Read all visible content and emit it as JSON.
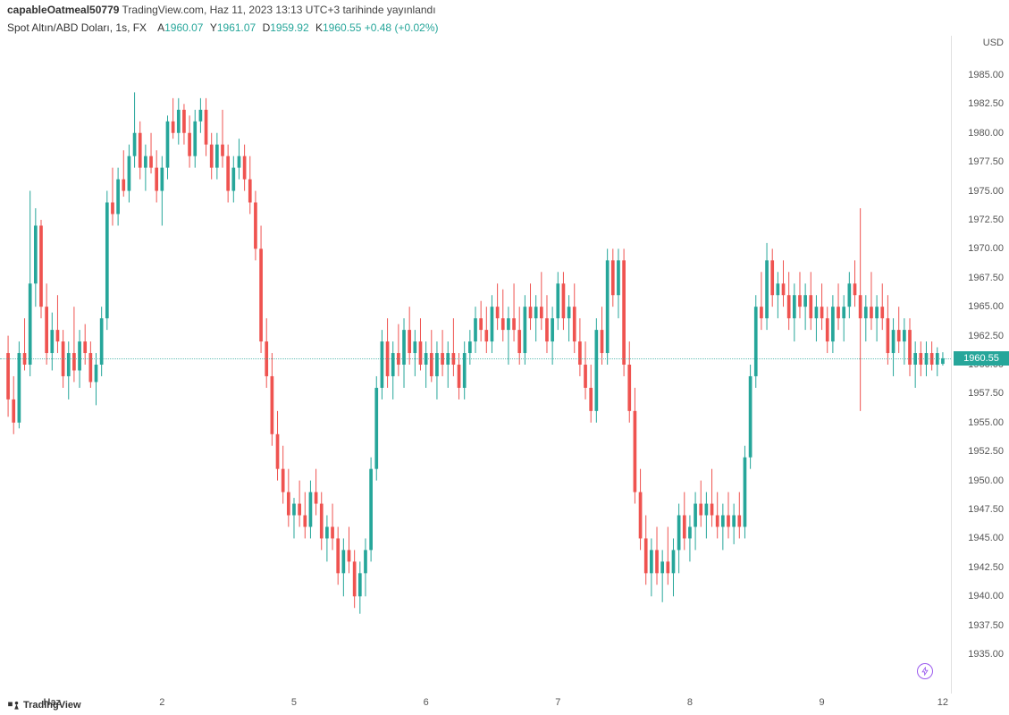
{
  "header": {
    "user": "capableOatmeal50779",
    "site": "TradingView.com",
    "published": ", Haz 11, 2023 13:13 UTC+3 tarihinde yayınlandı"
  },
  "subheader": {
    "symbol": "Spot Altın/ABD Doları, 1s, FX",
    "a_label": "A",
    "a_value": "1960.07",
    "y_label": "Y",
    "y_value": "1961.07",
    "d_label": "D",
    "d_value": "1959.92",
    "k_label": "K",
    "k_value": "1960.55",
    "change": "+0.48",
    "change_pct": "(+0.02%)"
  },
  "yaxis_title": "USD",
  "footer": "TradingView",
  "chart": {
    "type": "candlestick",
    "ylim": [
      1933,
      1987
    ],
    "ytick_step": 2.5,
    "yticks": [
      1935.0,
      1937.5,
      1940.0,
      1942.5,
      1945.0,
      1947.5,
      1950.0,
      1952.5,
      1955.0,
      1957.5,
      1960.0,
      1962.5,
      1965.0,
      1967.5,
      1970.0,
      1972.5,
      1975.0,
      1977.5,
      1980.0,
      1982.5,
      1985.0
    ],
    "xlabels": [
      {
        "t": 8,
        "label": "Haz"
      },
      {
        "t": 28,
        "label": "2"
      },
      {
        "t": 52,
        "label": "5"
      },
      {
        "t": 76,
        "label": "6"
      },
      {
        "t": 100,
        "label": "7"
      },
      {
        "t": 124,
        "label": "8"
      },
      {
        "t": 148,
        "label": "9"
      },
      {
        "t": 170,
        "label": "12"
      }
    ],
    "last_price": 1960.55,
    "up_color": "#26a69a",
    "down_color": "#ef5350",
    "background_color": "#ffffff",
    "grid_color": "#f0f0f0",
    "candle_width": 0.6,
    "candles": [
      {
        "o": 1961.0,
        "h": 1962.5,
        "l": 1955.5,
        "c": 1957.0
      },
      {
        "o": 1957.0,
        "h": 1959.0,
        "l": 1954.0,
        "c": 1955.0
      },
      {
        "o": 1955.0,
        "h": 1962.0,
        "l": 1954.5,
        "c": 1961.0
      },
      {
        "o": 1961.0,
        "h": 1964.0,
        "l": 1959.5,
        "c": 1960.0
      },
      {
        "o": 1960.0,
        "h": 1975.0,
        "l": 1959.0,
        "c": 1967.0
      },
      {
        "o": 1967.0,
        "h": 1973.5,
        "l": 1965.0,
        "c": 1972.0
      },
      {
        "o": 1972.0,
        "h": 1972.5,
        "l": 1964.0,
        "c": 1965.0
      },
      {
        "o": 1965.0,
        "h": 1967.0,
        "l": 1960.0,
        "c": 1961.0
      },
      {
        "o": 1961.0,
        "h": 1964.5,
        "l": 1959.5,
        "c": 1963.0
      },
      {
        "o": 1963.0,
        "h": 1966.0,
        "l": 1961.0,
        "c": 1962.0
      },
      {
        "o": 1962.0,
        "h": 1963.0,
        "l": 1958.0,
        "c": 1959.0
      },
      {
        "o": 1959.0,
        "h": 1962.0,
        "l": 1957.0,
        "c": 1961.0
      },
      {
        "o": 1961.0,
        "h": 1965.0,
        "l": 1958.5,
        "c": 1959.5
      },
      {
        "o": 1959.5,
        "h": 1963.0,
        "l": 1958.0,
        "c": 1962.0
      },
      {
        "o": 1962.0,
        "h": 1963.5,
        "l": 1960.0,
        "c": 1961.0
      },
      {
        "o": 1961.0,
        "h": 1962.0,
        "l": 1958.0,
        "c": 1958.5
      },
      {
        "o": 1958.5,
        "h": 1961.0,
        "l": 1956.5,
        "c": 1960.0
      },
      {
        "o": 1960.0,
        "h": 1965.0,
        "l": 1959.0,
        "c": 1964.0
      },
      {
        "o": 1964.0,
        "h": 1975.0,
        "l": 1963.0,
        "c": 1974.0
      },
      {
        "o": 1974.0,
        "h": 1977.0,
        "l": 1972.0,
        "c": 1973.0
      },
      {
        "o": 1973.0,
        "h": 1977.0,
        "l": 1972.0,
        "c": 1976.0
      },
      {
        "o": 1976.0,
        "h": 1978.5,
        "l": 1974.5,
        "c": 1975.0
      },
      {
        "o": 1975.0,
        "h": 1979.0,
        "l": 1974.0,
        "c": 1978.0
      },
      {
        "o": 1978.0,
        "h": 1983.5,
        "l": 1977.0,
        "c": 1980.0
      },
      {
        "o": 1980.0,
        "h": 1981.0,
        "l": 1976.0,
        "c": 1977.0
      },
      {
        "o": 1977.0,
        "h": 1979.0,
        "l": 1975.0,
        "c": 1978.0
      },
      {
        "o": 1978.0,
        "h": 1980.0,
        "l": 1976.5,
        "c": 1977.0
      },
      {
        "o": 1977.0,
        "h": 1978.5,
        "l": 1974.0,
        "c": 1975.0
      },
      {
        "o": 1975.0,
        "h": 1978.0,
        "l": 1972.0,
        "c": 1977.0
      },
      {
        "o": 1977.0,
        "h": 1981.5,
        "l": 1976.0,
        "c": 1981.0
      },
      {
        "o": 1981.0,
        "h": 1983.0,
        "l": 1979.5,
        "c": 1980.0
      },
      {
        "o": 1980.0,
        "h": 1983.0,
        "l": 1979.0,
        "c": 1982.0
      },
      {
        "o": 1982.0,
        "h": 1982.5,
        "l": 1979.0,
        "c": 1980.0
      },
      {
        "o": 1980.0,
        "h": 1981.5,
        "l": 1977.0,
        "c": 1978.0
      },
      {
        "o": 1978.0,
        "h": 1982.0,
        "l": 1977.0,
        "c": 1981.0
      },
      {
        "o": 1981.0,
        "h": 1983.0,
        "l": 1980.0,
        "c": 1982.0
      },
      {
        "o": 1982.0,
        "h": 1983.0,
        "l": 1978.0,
        "c": 1979.0
      },
      {
        "o": 1979.0,
        "h": 1980.0,
        "l": 1976.0,
        "c": 1977.0
      },
      {
        "o": 1977.0,
        "h": 1980.0,
        "l": 1976.0,
        "c": 1979.0
      },
      {
        "o": 1979.0,
        "h": 1982.0,
        "l": 1977.0,
        "c": 1978.0
      },
      {
        "o": 1978.0,
        "h": 1979.0,
        "l": 1974.0,
        "c": 1975.0
      },
      {
        "o": 1975.0,
        "h": 1978.0,
        "l": 1974.0,
        "c": 1977.0
      },
      {
        "o": 1977.0,
        "h": 1979.5,
        "l": 1976.0,
        "c": 1978.0
      },
      {
        "o": 1978.0,
        "h": 1979.0,
        "l": 1975.0,
        "c": 1976.0
      },
      {
        "o": 1976.0,
        "h": 1978.0,
        "l": 1973.0,
        "c": 1974.0
      },
      {
        "o": 1974.0,
        "h": 1975.0,
        "l": 1969.0,
        "c": 1970.0
      },
      {
        "o": 1970.0,
        "h": 1972.0,
        "l": 1961.0,
        "c": 1962.0
      },
      {
        "o": 1962.0,
        "h": 1964.0,
        "l": 1958.0,
        "c": 1959.0
      },
      {
        "o": 1959.0,
        "h": 1961.0,
        "l": 1953.0,
        "c": 1954.0
      },
      {
        "o": 1954.0,
        "h": 1956.0,
        "l": 1950.0,
        "c": 1951.0
      },
      {
        "o": 1951.0,
        "h": 1953.0,
        "l": 1948.0,
        "c": 1949.0
      },
      {
        "o": 1949.0,
        "h": 1951.0,
        "l": 1946.0,
        "c": 1947.0
      },
      {
        "o": 1947.0,
        "h": 1948.5,
        "l": 1945.0,
        "c": 1948.0
      },
      {
        "o": 1948.0,
        "h": 1950.0,
        "l": 1946.0,
        "c": 1947.0
      },
      {
        "o": 1947.0,
        "h": 1949.0,
        "l": 1945.0,
        "c": 1946.0
      },
      {
        "o": 1946.0,
        "h": 1950.0,
        "l": 1945.0,
        "c": 1949.0
      },
      {
        "o": 1949.0,
        "h": 1951.0,
        "l": 1947.0,
        "c": 1948.0
      },
      {
        "o": 1948.0,
        "h": 1949.0,
        "l": 1944.0,
        "c": 1945.0
      },
      {
        "o": 1945.0,
        "h": 1947.0,
        "l": 1943.0,
        "c": 1946.0
      },
      {
        "o": 1946.0,
        "h": 1948.0,
        "l": 1944.0,
        "c": 1945.0
      },
      {
        "o": 1945.0,
        "h": 1946.0,
        "l": 1941.0,
        "c": 1942.0
      },
      {
        "o": 1942.0,
        "h": 1945.0,
        "l": 1940.0,
        "c": 1944.0
      },
      {
        "o": 1944.0,
        "h": 1946.0,
        "l": 1942.0,
        "c": 1943.0
      },
      {
        "o": 1943.0,
        "h": 1944.0,
        "l": 1939.0,
        "c": 1940.0
      },
      {
        "o": 1940.0,
        "h": 1943.0,
        "l": 1938.5,
        "c": 1942.0
      },
      {
        "o": 1942.0,
        "h": 1945.0,
        "l": 1940.0,
        "c": 1944.0
      },
      {
        "o": 1944.0,
        "h": 1952.0,
        "l": 1943.0,
        "c": 1951.0
      },
      {
        "o": 1951.0,
        "h": 1959.0,
        "l": 1950.0,
        "c": 1958.0
      },
      {
        "o": 1958.0,
        "h": 1963.0,
        "l": 1957.0,
        "c": 1962.0
      },
      {
        "o": 1962.0,
        "h": 1964.0,
        "l": 1958.0,
        "c": 1959.0
      },
      {
        "o": 1959.0,
        "h": 1962.0,
        "l": 1957.0,
        "c": 1961.0
      },
      {
        "o": 1961.0,
        "h": 1963.5,
        "l": 1959.0,
        "c": 1960.0
      },
      {
        "o": 1960.0,
        "h": 1964.0,
        "l": 1958.0,
        "c": 1963.0
      },
      {
        "o": 1963.0,
        "h": 1965.0,
        "l": 1960.0,
        "c": 1961.0
      },
      {
        "o": 1961.0,
        "h": 1963.0,
        "l": 1959.0,
        "c": 1962.0
      },
      {
        "o": 1962.0,
        "h": 1964.0,
        "l": 1959.5,
        "c": 1960.0
      },
      {
        "o": 1960.0,
        "h": 1962.0,
        "l": 1958.0,
        "c": 1961.0
      },
      {
        "o": 1961.0,
        "h": 1963.0,
        "l": 1958.5,
        "c": 1959.0
      },
      {
        "o": 1959.0,
        "h": 1962.0,
        "l": 1957.0,
        "c": 1961.0
      },
      {
        "o": 1961.0,
        "h": 1963.0,
        "l": 1959.0,
        "c": 1960.0
      },
      {
        "o": 1960.0,
        "h": 1962.0,
        "l": 1958.0,
        "c": 1961.0
      },
      {
        "o": 1961.0,
        "h": 1964.0,
        "l": 1959.0,
        "c": 1960.0
      },
      {
        "o": 1960.0,
        "h": 1961.0,
        "l": 1957.0,
        "c": 1958.0
      },
      {
        "o": 1958.0,
        "h": 1962.0,
        "l": 1957.0,
        "c": 1961.0
      },
      {
        "o": 1961.0,
        "h": 1963.0,
        "l": 1960.0,
        "c": 1962.0
      },
      {
        "o": 1962.0,
        "h": 1965.0,
        "l": 1961.0,
        "c": 1964.0
      },
      {
        "o": 1964.0,
        "h": 1965.5,
        "l": 1962.0,
        "c": 1963.0
      },
      {
        "o": 1963.0,
        "h": 1965.0,
        "l": 1961.0,
        "c": 1962.0
      },
      {
        "o": 1962.0,
        "h": 1966.0,
        "l": 1961.0,
        "c": 1965.0
      },
      {
        "o": 1965.0,
        "h": 1967.0,
        "l": 1963.0,
        "c": 1964.0
      },
      {
        "o": 1964.0,
        "h": 1966.5,
        "l": 1962.0,
        "c": 1963.0
      },
      {
        "o": 1963.0,
        "h": 1965.0,
        "l": 1960.0,
        "c": 1964.0
      },
      {
        "o": 1964.0,
        "h": 1967.0,
        "l": 1962.0,
        "c": 1963.0
      },
      {
        "o": 1963.0,
        "h": 1965.0,
        "l": 1960.0,
        "c": 1961.0
      },
      {
        "o": 1961.0,
        "h": 1966.0,
        "l": 1960.0,
        "c": 1965.0
      },
      {
        "o": 1965.0,
        "h": 1967.0,
        "l": 1963.0,
        "c": 1964.0
      },
      {
        "o": 1964.0,
        "h": 1966.0,
        "l": 1962.0,
        "c": 1965.0
      },
      {
        "o": 1965.0,
        "h": 1968.0,
        "l": 1963.0,
        "c": 1964.0
      },
      {
        "o": 1964.0,
        "h": 1966.0,
        "l": 1961.0,
        "c": 1962.0
      },
      {
        "o": 1962.0,
        "h": 1965.0,
        "l": 1960.0,
        "c": 1964.0
      },
      {
        "o": 1964.0,
        "h": 1968.0,
        "l": 1963.0,
        "c": 1967.0
      },
      {
        "o": 1967.0,
        "h": 1968.0,
        "l": 1963.0,
        "c": 1964.0
      },
      {
        "o": 1964.0,
        "h": 1966.0,
        "l": 1962.0,
        "c": 1965.0
      },
      {
        "o": 1965.0,
        "h": 1967.0,
        "l": 1961.0,
        "c": 1962.0
      },
      {
        "o": 1962.0,
        "h": 1964.0,
        "l": 1959.0,
        "c": 1960.0
      },
      {
        "o": 1960.0,
        "h": 1962.0,
        "l": 1957.0,
        "c": 1958.0
      },
      {
        "o": 1958.0,
        "h": 1960.0,
        "l": 1955.0,
        "c": 1956.0
      },
      {
        "o": 1956.0,
        "h": 1964.0,
        "l": 1955.0,
        "c": 1963.0
      },
      {
        "o": 1963.0,
        "h": 1965.0,
        "l": 1960.0,
        "c": 1961.0
      },
      {
        "o": 1961.0,
        "h": 1970.0,
        "l": 1960.0,
        "c": 1969.0
      },
      {
        "o": 1969.0,
        "h": 1970.0,
        "l": 1965.0,
        "c": 1966.0
      },
      {
        "o": 1966.0,
        "h": 1970.0,
        "l": 1964.0,
        "c": 1969.0
      },
      {
        "o": 1969.0,
        "h": 1970.0,
        "l": 1959.0,
        "c": 1960.0
      },
      {
        "o": 1960.0,
        "h": 1962.0,
        "l": 1955.0,
        "c": 1956.0
      },
      {
        "o": 1956.0,
        "h": 1958.0,
        "l": 1948.0,
        "c": 1949.0
      },
      {
        "o": 1949.0,
        "h": 1951.0,
        "l": 1944.0,
        "c": 1945.0
      },
      {
        "o": 1945.0,
        "h": 1947.0,
        "l": 1941.0,
        "c": 1942.0
      },
      {
        "o": 1942.0,
        "h": 1945.0,
        "l": 1940.0,
        "c": 1944.0
      },
      {
        "o": 1944.0,
        "h": 1946.0,
        "l": 1941.0,
        "c": 1942.0
      },
      {
        "o": 1942.0,
        "h": 1944.0,
        "l": 1939.5,
        "c": 1943.0
      },
      {
        "o": 1943.0,
        "h": 1946.0,
        "l": 1941.0,
        "c": 1942.0
      },
      {
        "o": 1942.0,
        "h": 1945.0,
        "l": 1940.0,
        "c": 1944.0
      },
      {
        "o": 1944.0,
        "h": 1948.0,
        "l": 1942.0,
        "c": 1947.0
      },
      {
        "o": 1947.0,
        "h": 1949.0,
        "l": 1944.0,
        "c": 1945.0
      },
      {
        "o": 1945.0,
        "h": 1947.0,
        "l": 1943.0,
        "c": 1946.0
      },
      {
        "o": 1946.0,
        "h": 1949.0,
        "l": 1944.0,
        "c": 1948.0
      },
      {
        "o": 1948.0,
        "h": 1950.0,
        "l": 1946.0,
        "c": 1947.0
      },
      {
        "o": 1947.0,
        "h": 1949.0,
        "l": 1945.0,
        "c": 1948.0
      },
      {
        "o": 1948.0,
        "h": 1951.0,
        "l": 1946.0,
        "c": 1947.0
      },
      {
        "o": 1947.0,
        "h": 1949.0,
        "l": 1945.0,
        "c": 1946.0
      },
      {
        "o": 1946.0,
        "h": 1948.0,
        "l": 1944.0,
        "c": 1947.0
      },
      {
        "o": 1947.0,
        "h": 1949.0,
        "l": 1945.0,
        "c": 1946.0
      },
      {
        "o": 1946.0,
        "h": 1948.0,
        "l": 1944.5,
        "c": 1947.0
      },
      {
        "o": 1947.0,
        "h": 1949.0,
        "l": 1945.0,
        "c": 1946.0
      },
      {
        "o": 1946.0,
        "h": 1953.0,
        "l": 1945.0,
        "c": 1952.0
      },
      {
        "o": 1952.0,
        "h": 1960.0,
        "l": 1951.0,
        "c": 1959.0
      },
      {
        "o": 1959.0,
        "h": 1966.0,
        "l": 1958.0,
        "c": 1965.0
      },
      {
        "o": 1965.0,
        "h": 1968.0,
        "l": 1963.0,
        "c": 1964.0
      },
      {
        "o": 1964.0,
        "h": 1970.5,
        "l": 1963.0,
        "c": 1969.0
      },
      {
        "o": 1969.0,
        "h": 1970.0,
        "l": 1965.0,
        "c": 1966.0
      },
      {
        "o": 1966.0,
        "h": 1968.0,
        "l": 1964.0,
        "c": 1967.0
      },
      {
        "o": 1967.0,
        "h": 1969.0,
        "l": 1965.0,
        "c": 1966.0
      },
      {
        "o": 1966.0,
        "h": 1968.0,
        "l": 1963.0,
        "c": 1964.0
      },
      {
        "o": 1964.0,
        "h": 1967.0,
        "l": 1962.0,
        "c": 1966.0
      },
      {
        "o": 1966.0,
        "h": 1968.0,
        "l": 1964.0,
        "c": 1965.0
      },
      {
        "o": 1965.0,
        "h": 1967.0,
        "l": 1963.0,
        "c": 1966.0
      },
      {
        "o": 1966.0,
        "h": 1968.0,
        "l": 1963.0,
        "c": 1964.0
      },
      {
        "o": 1964.0,
        "h": 1966.0,
        "l": 1962.0,
        "c": 1965.0
      },
      {
        "o": 1965.0,
        "h": 1967.0,
        "l": 1963.0,
        "c": 1964.0
      },
      {
        "o": 1964.0,
        "h": 1965.0,
        "l": 1961.0,
        "c": 1962.0
      },
      {
        "o": 1962.0,
        "h": 1966.0,
        "l": 1961.0,
        "c": 1965.0
      },
      {
        "o": 1965.0,
        "h": 1967.0,
        "l": 1963.0,
        "c": 1964.0
      },
      {
        "o": 1964.0,
        "h": 1966.0,
        "l": 1962.0,
        "c": 1965.0
      },
      {
        "o": 1965.0,
        "h": 1968.0,
        "l": 1964.0,
        "c": 1967.0
      },
      {
        "o": 1967.0,
        "h": 1969.0,
        "l": 1965.0,
        "c": 1966.0
      },
      {
        "o": 1966.0,
        "h": 1973.5,
        "l": 1956.0,
        "c": 1964.0
      },
      {
        "o": 1964.0,
        "h": 1966.0,
        "l": 1962.0,
        "c": 1965.0
      },
      {
        "o": 1965.0,
        "h": 1968.0,
        "l": 1963.0,
        "c": 1964.0
      },
      {
        "o": 1964.0,
        "h": 1966.0,
        "l": 1962.0,
        "c": 1965.0
      },
      {
        "o": 1965.0,
        "h": 1967.0,
        "l": 1963.0,
        "c": 1964.0
      },
      {
        "o": 1964.0,
        "h": 1966.0,
        "l": 1960.0,
        "c": 1961.0
      },
      {
        "o": 1961.0,
        "h": 1964.0,
        "l": 1959.0,
        "c": 1963.0
      },
      {
        "o": 1963.0,
        "h": 1965.0,
        "l": 1961.0,
        "c": 1962.0
      },
      {
        "o": 1962.0,
        "h": 1964.0,
        "l": 1960.0,
        "c": 1963.0
      },
      {
        "o": 1963.0,
        "h": 1964.0,
        "l": 1959.0,
        "c": 1960.0
      },
      {
        "o": 1960.0,
        "h": 1962.0,
        "l": 1958.0,
        "c": 1961.0
      },
      {
        "o": 1961.0,
        "h": 1962.0,
        "l": 1959.0,
        "c": 1960.0
      },
      {
        "o": 1960.0,
        "h": 1962.0,
        "l": 1959.0,
        "c": 1961.0
      },
      {
        "o": 1961.0,
        "h": 1962.0,
        "l": 1959.5,
        "c": 1960.0
      },
      {
        "o": 1960.0,
        "h": 1961.5,
        "l": 1959.0,
        "c": 1961.0
      },
      {
        "o": 1960.07,
        "h": 1961.07,
        "l": 1959.92,
        "c": 1960.55
      }
    ]
  }
}
